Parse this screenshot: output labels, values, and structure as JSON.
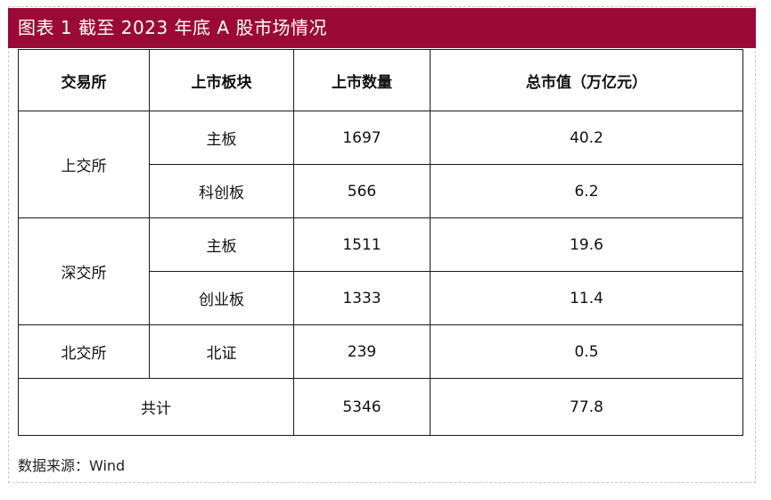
{
  "title": "图表 1 截至 2023 年底 A 股市场情况",
  "table": {
    "headers": [
      "交易所",
      "上市板块",
      "上市数量",
      "总市值（万亿元）"
    ],
    "rows": [
      {
        "exchange": "上交所",
        "board": "主板",
        "count": "1697",
        "cap": "40.2"
      },
      {
        "exchange": "",
        "board": "科创板",
        "count": "566",
        "cap": "6.2"
      },
      {
        "exchange": "深交所",
        "board": "主板",
        "count": "1511",
        "cap": "19.6"
      },
      {
        "exchange": "",
        "board": "创业板",
        "count": "1333",
        "cap": "11.4"
      },
      {
        "exchange": "北交所",
        "board": "北证",
        "count": "239",
        "cap": "0.5"
      }
    ],
    "total": {
      "label": "共计",
      "count": "5346",
      "cap": "77.8"
    }
  },
  "source": "数据来源：Wind",
  "colors": {
    "title_bar": "#9b0a37"
  }
}
